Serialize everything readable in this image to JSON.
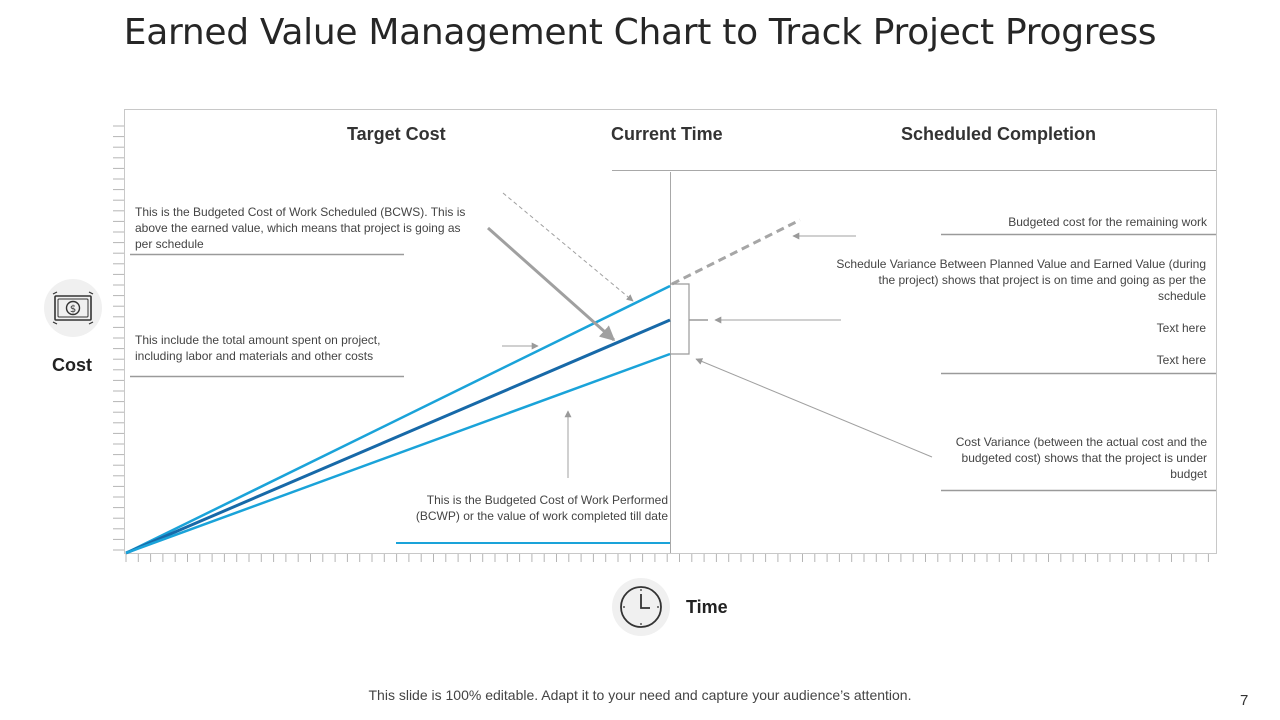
{
  "title": "Earned Value Management Chart to Track Project Progress",
  "columns": {
    "target_cost": "Target Cost",
    "current_time": "Current Time",
    "scheduled_completion": "Scheduled Completion"
  },
  "notes": {
    "bcws": "This is the Budgeted Cost of Work Scheduled (BCWS). This is above the earned value, which means that project is going as per schedule",
    "actual_cost": "This include the total amount spent on project, including labor and materials and other costs",
    "bcwp": "This is the Budgeted Cost of Work Performed (BCWP) or the value of work completed till date",
    "remaining": "Budgeted cost for the remaining work",
    "schedule_variance": "Schedule Variance Between Planned Value and Earned Value (during the project) shows that project is on time and going as per the schedule",
    "text1": "Text here",
    "text2": "Text here",
    "cost_variance": "Cost Variance (between the actual cost and the budgeted cost) shows that the project is under budget"
  },
  "axes": {
    "y_label": "Cost",
    "x_label": "Time"
  },
  "icons": {
    "cost": "money-icon",
    "time": "clock-icon"
  },
  "colors": {
    "light_blue": "#1aa3d9",
    "dark_blue": "#1769a8",
    "grey": "#9a9a9a"
  },
  "footer": "This slide is 100% editable. Adapt it to your need and capture your audience’s attention.",
  "page_number": "7"
}
